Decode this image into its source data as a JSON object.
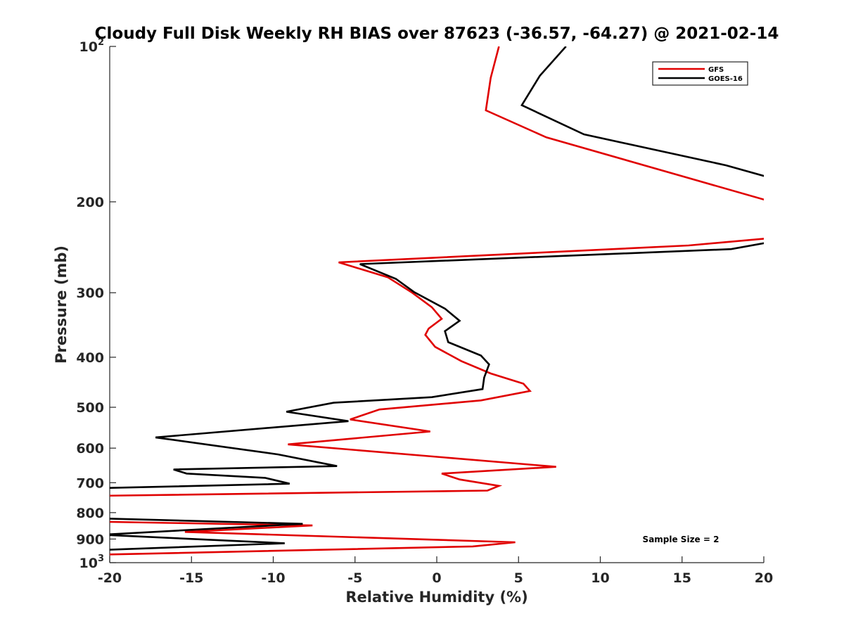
{
  "chart_data": {
    "type": "line",
    "title": "Cloudy Full Disk Weekly RH BIAS over 87623 (-36.57, -64.27) @ 2021-02-14",
    "xlabel": "Relative Humidity (%)",
    "ylabel": "Pressure (mb)",
    "xlim": [
      -20,
      20
    ],
    "ylim": [
      100,
      1000
    ],
    "yscale": "log",
    "y_reversed": true,
    "grid": false,
    "legend_position": "top-right",
    "x_ticks": [
      -20,
      -15,
      -10,
      -5,
      0,
      5,
      10,
      15,
      20
    ],
    "y_ticks": [
      {
        "value": 100,
        "base": "10",
        "exp": "2"
      },
      {
        "value": 200,
        "label": "200"
      },
      {
        "value": 300,
        "label": "300"
      },
      {
        "value": 400,
        "label": "400"
      },
      {
        "value": 500,
        "label": "500"
      },
      {
        "value": 600,
        "label": "600"
      },
      {
        "value": 700,
        "label": "700"
      },
      {
        "value": 800,
        "label": "800"
      },
      {
        "value": 900,
        "label": "900"
      },
      {
        "value": 1000,
        "base": "10",
        "exp": "3"
      }
    ],
    "annotation": "Sample Size = 2",
    "series": [
      {
        "name": "GFS",
        "color": "#e00000",
        "points": [
          [
            3.8,
            100
          ],
          [
            3.3,
            115
          ],
          [
            3.0,
            133
          ],
          [
            6.7,
            150
          ],
          [
            20.5,
            200
          ],
          [
            20.5,
            235
          ],
          [
            15.4,
            243
          ],
          [
            -6.0,
            262
          ],
          [
            -3.0,
            280
          ],
          [
            -1.5,
            300
          ],
          [
            -0.3,
            320
          ],
          [
            0.3,
            337
          ],
          [
            -0.5,
            352
          ],
          [
            -0.7,
            362
          ],
          [
            -0.1,
            382
          ],
          [
            1.5,
            407
          ],
          [
            3.3,
            430
          ],
          [
            5.3,
            450
          ],
          [
            5.7,
            465
          ],
          [
            2.7,
            485
          ],
          [
            -3.5,
            505
          ],
          [
            -5.3,
            528
          ],
          [
            -0.4,
            557
          ],
          [
            -9.1,
            590
          ],
          [
            7.3,
            652
          ],
          [
            0.3,
            672
          ],
          [
            1.4,
            690
          ],
          [
            3.8,
            710
          ],
          [
            3.1,
            725
          ],
          [
            -20.5,
            742
          ],
          [
            -20.5,
            833
          ],
          [
            -7.6,
            847
          ],
          [
            -15.4,
            872
          ],
          [
            4.8,
            913
          ],
          [
            2.2,
            930
          ],
          [
            -20.5,
            965
          ]
        ]
      },
      {
        "name": "GOES-16",
        "color": "#000000",
        "points": [
          [
            7.9,
            100
          ],
          [
            6.3,
            114
          ],
          [
            5.2,
            130
          ],
          [
            9.0,
            148
          ],
          [
            17.7,
            170
          ],
          [
            20.5,
            180
          ],
          [
            20.5,
            239
          ],
          [
            18.0,
            247
          ],
          [
            -4.7,
            264
          ],
          [
            -2.5,
            282
          ],
          [
            -1.4,
            299
          ],
          [
            0.5,
            322
          ],
          [
            1.4,
            340
          ],
          [
            0.5,
            356
          ],
          [
            0.7,
            374
          ],
          [
            2.7,
            397
          ],
          [
            3.2,
            413
          ],
          [
            2.9,
            438
          ],
          [
            2.8,
            461
          ],
          [
            -0.3,
            478
          ],
          [
            -6.3,
            490
          ],
          [
            -9.2,
            510
          ],
          [
            -5.4,
            532
          ],
          [
            -17.2,
            572
          ],
          [
            -9.7,
            617
          ],
          [
            -6.1,
            650
          ],
          [
            -16.1,
            660
          ],
          [
            -15.3,
            672
          ],
          [
            -10.5,
            685
          ],
          [
            -9.0,
            703
          ],
          [
            -20.5,
            717
          ],
          [
            -20.5,
            821
          ],
          [
            -8.2,
            841
          ],
          [
            -20.5,
            883
          ],
          [
            -9.3,
            917
          ],
          [
            -20.5,
            945
          ]
        ]
      }
    ]
  }
}
